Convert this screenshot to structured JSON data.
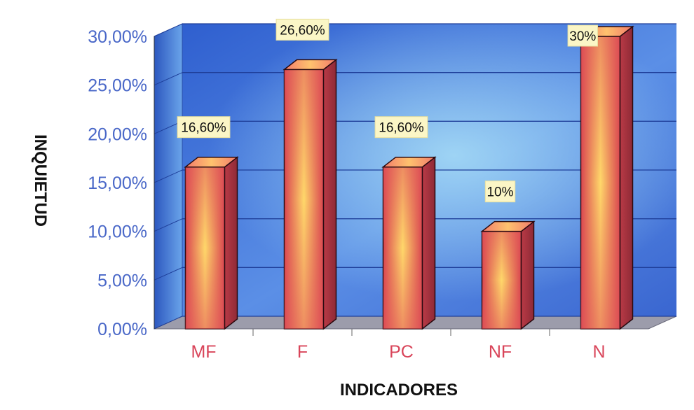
{
  "chart_data": {
    "type": "bar",
    "categories": [
      "MF",
      "F",
      "PC",
      "NF",
      "N"
    ],
    "values": [
      16.6,
      26.6,
      16.6,
      10,
      30
    ],
    "data_labels": [
      "16,60%",
      "26,60%",
      "16,60%",
      "10%",
      "30%"
    ],
    "y_ticks": [
      0,
      5,
      10,
      15,
      20,
      25,
      30
    ],
    "y_tick_labels": [
      "0,00%",
      "5,00%",
      "10,00%",
      "15,00%",
      "20,00%",
      "25,00%",
      "30,00%"
    ],
    "ylim": [
      0,
      30
    ],
    "xlabel": "INDICADORES",
    "ylabel": "INQUIETUD",
    "title": "",
    "grid": true,
    "style": "3d",
    "colors": {
      "bar_front": "#e0525a",
      "bar_glow": "#ffe86a",
      "bar_side": "#a8323e",
      "bar_top": "#f08a6c",
      "wall": "#3f6fd6",
      "wall_light": "#9ad4f4",
      "floor": "#9a9aa8",
      "tick_text": "#4a68c8",
      "category_text": "#d9455a",
      "label_box": "#fbf6c6"
    }
  }
}
